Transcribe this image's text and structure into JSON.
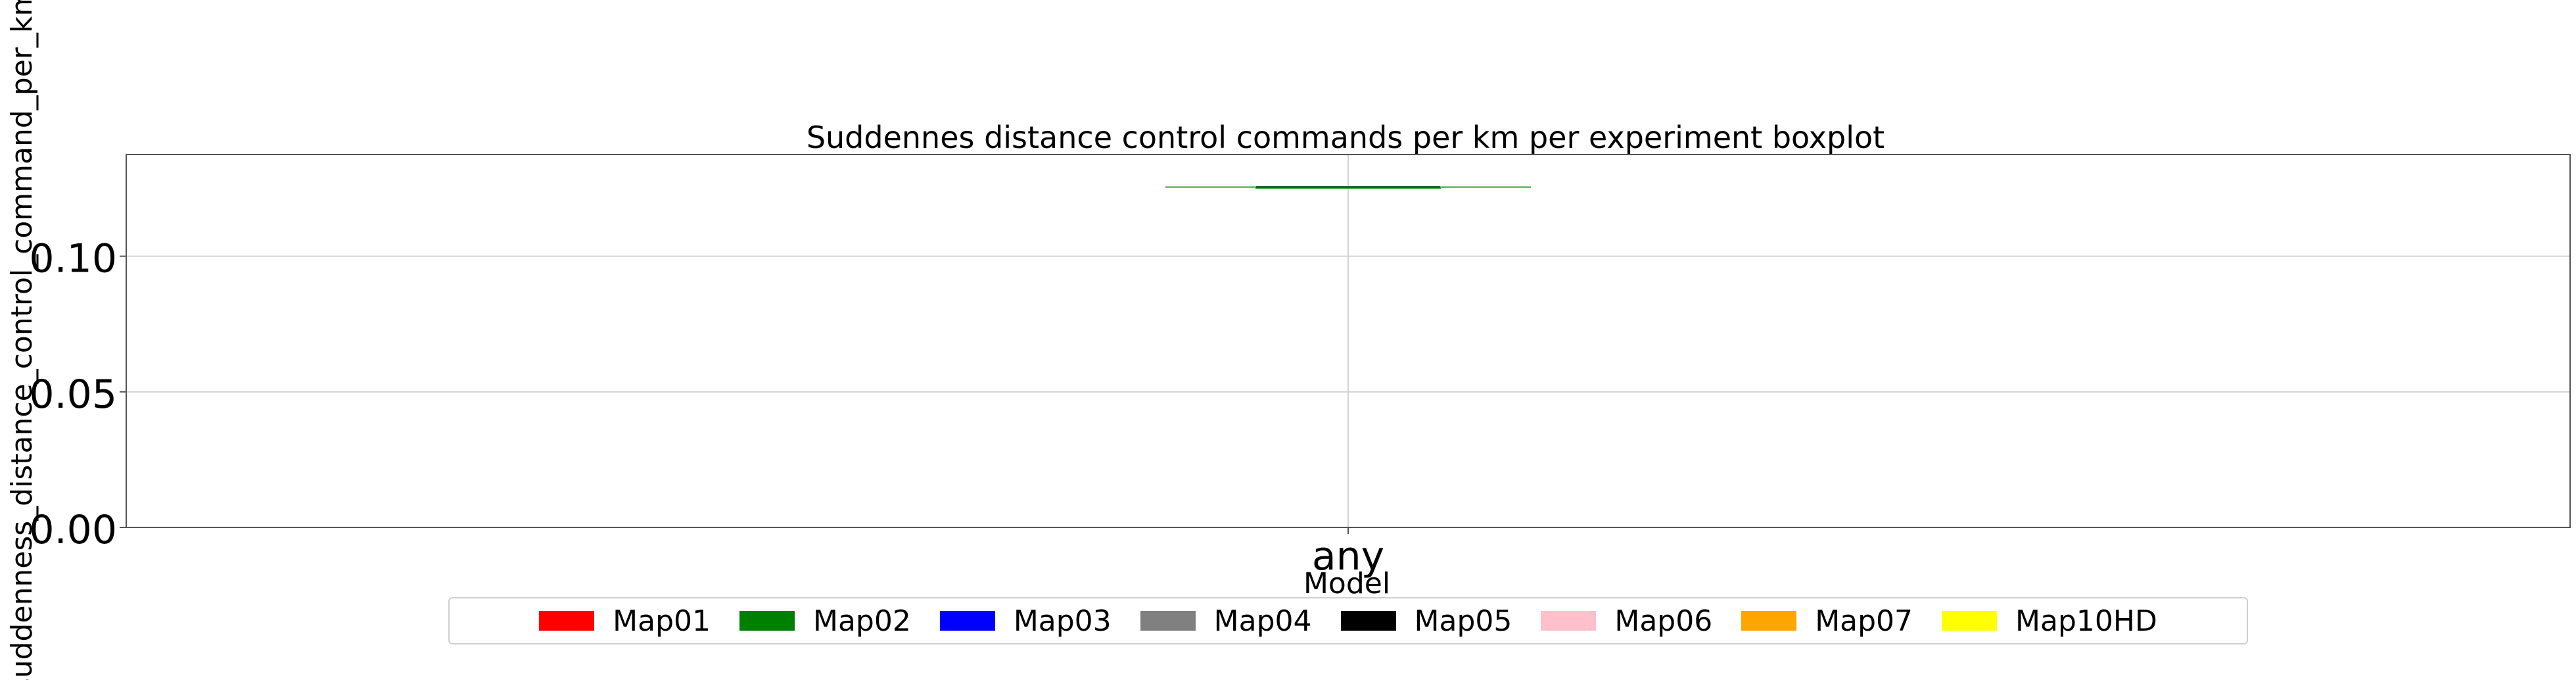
{
  "chart_data": {
    "type": "box",
    "title": "Suddennes distance control commands per km per experiment boxplot",
    "xlabel": "Model",
    "ylabel": "suddenness_distance_control_command_per_km",
    "categories": [
      "any"
    ],
    "ylim": [
      0,
      0.1375
    ],
    "yticks": [
      0.0,
      0.05,
      0.1
    ],
    "ytick_labels": [
      "0.00",
      "0.05",
      "0.10"
    ],
    "grid": true,
    "series": [
      {
        "category": "any",
        "whislo": 0.1255,
        "q1": 0.1255,
        "median": 0.1255,
        "q3": 0.1255,
        "whishi": 0.1255,
        "color": "#2ca02c"
      }
    ],
    "legend": {
      "placement": "bottom-center",
      "entries": [
        {
          "label": "Map01",
          "color": "#ff0000"
        },
        {
          "label": "Map02",
          "color": "#008000"
        },
        {
          "label": "Map03",
          "color": "#0000ff"
        },
        {
          "label": "Map04",
          "color": "#808080"
        },
        {
          "label": "Map05",
          "color": "#000000"
        },
        {
          "label": "Map06",
          "color": "#ffc0cb"
        },
        {
          "label": "Map07",
          "color": "#ffa500"
        },
        {
          "label": "Map10HD",
          "color": "#ffff00"
        }
      ]
    }
  }
}
